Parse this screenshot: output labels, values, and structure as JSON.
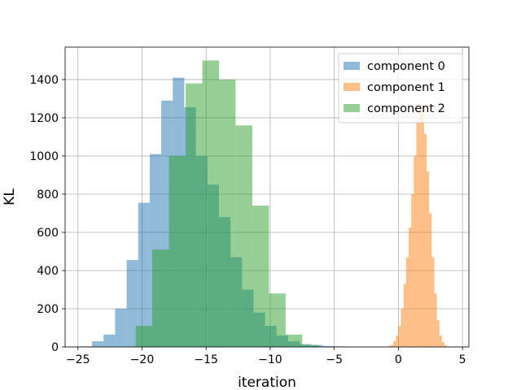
{
  "chart_data": {
    "type": "bar",
    "subtype": "overlapping-histogram",
    "xlabel": "iteration",
    "ylabel": "KL",
    "xlim": [
      -26,
      5.5
    ],
    "ylim": [
      0,
      1570
    ],
    "xticks": [
      -25,
      -20,
      -15,
      -10,
      -5,
      0,
      5
    ],
    "xtick_labels": [
      "−25",
      "−20",
      "−15",
      "−10",
      "−5",
      "0",
      "5"
    ],
    "yticks": [
      0,
      200,
      400,
      600,
      800,
      1000,
      1200,
      1400
    ],
    "ytick_labels": [
      "0",
      "200",
      "400",
      "600",
      "800",
      "1000",
      "1200",
      "1400"
    ],
    "grid": true,
    "legend_position": "top-right",
    "series": [
      {
        "name": "component 0",
        "color": "#1f77b4",
        "alpha": 0.5,
        "bin_edges": [
          -24.8,
          -23.9,
          -23.0,
          -22.1,
          -21.2,
          -20.3,
          -19.4,
          -18.5,
          -17.6,
          -16.7,
          -15.8,
          -14.9,
          -14.0,
          -13.1,
          -12.2,
          -11.3,
          -10.4,
          -9.5,
          -8.6,
          -7.7,
          -6.8,
          -5.9,
          -5.0,
          -4.1,
          -3.2
        ],
        "counts": [
          3,
          30,
          65,
          200,
          455,
          755,
          1010,
          1290,
          1410,
          1255,
          1000,
          850,
          680,
          470,
          300,
          180,
          110,
          60,
          30,
          15,
          10,
          5,
          3,
          1
        ]
      },
      {
        "name": "component 1",
        "color": "#ff7f0e",
        "alpha": 0.5,
        "bin_edges": [
          -1.0,
          -0.8,
          -0.6,
          -0.4,
          -0.2,
          0.0,
          0.2,
          0.4,
          0.6,
          0.8,
          1.0,
          1.2,
          1.4,
          1.6,
          1.8,
          2.0,
          2.2,
          2.4,
          2.6,
          2.8,
          3.0,
          3.2,
          3.4,
          3.6,
          3.8
        ],
        "counts": [
          2,
          5,
          10,
          30,
          60,
          110,
          200,
          330,
          470,
          625,
          800,
          1000,
          1180,
          1275,
          1255,
          1115,
          920,
          700,
          470,
          280,
          140,
          60,
          25,
          8
        ]
      },
      {
        "name": "component 2",
        "color": "#2ca02c",
        "alpha": 0.5,
        "bin_edges": [
          -20.5,
          -19.2,
          -17.9,
          -16.6,
          -15.3,
          -14.0,
          -12.7,
          -11.4,
          -10.1,
          -8.8,
          -7.5,
          -6.2
        ],
        "counts": [
          110,
          510,
          1000,
          1380,
          1500,
          1400,
          1160,
          740,
          280,
          65,
          10
        ]
      }
    ]
  }
}
